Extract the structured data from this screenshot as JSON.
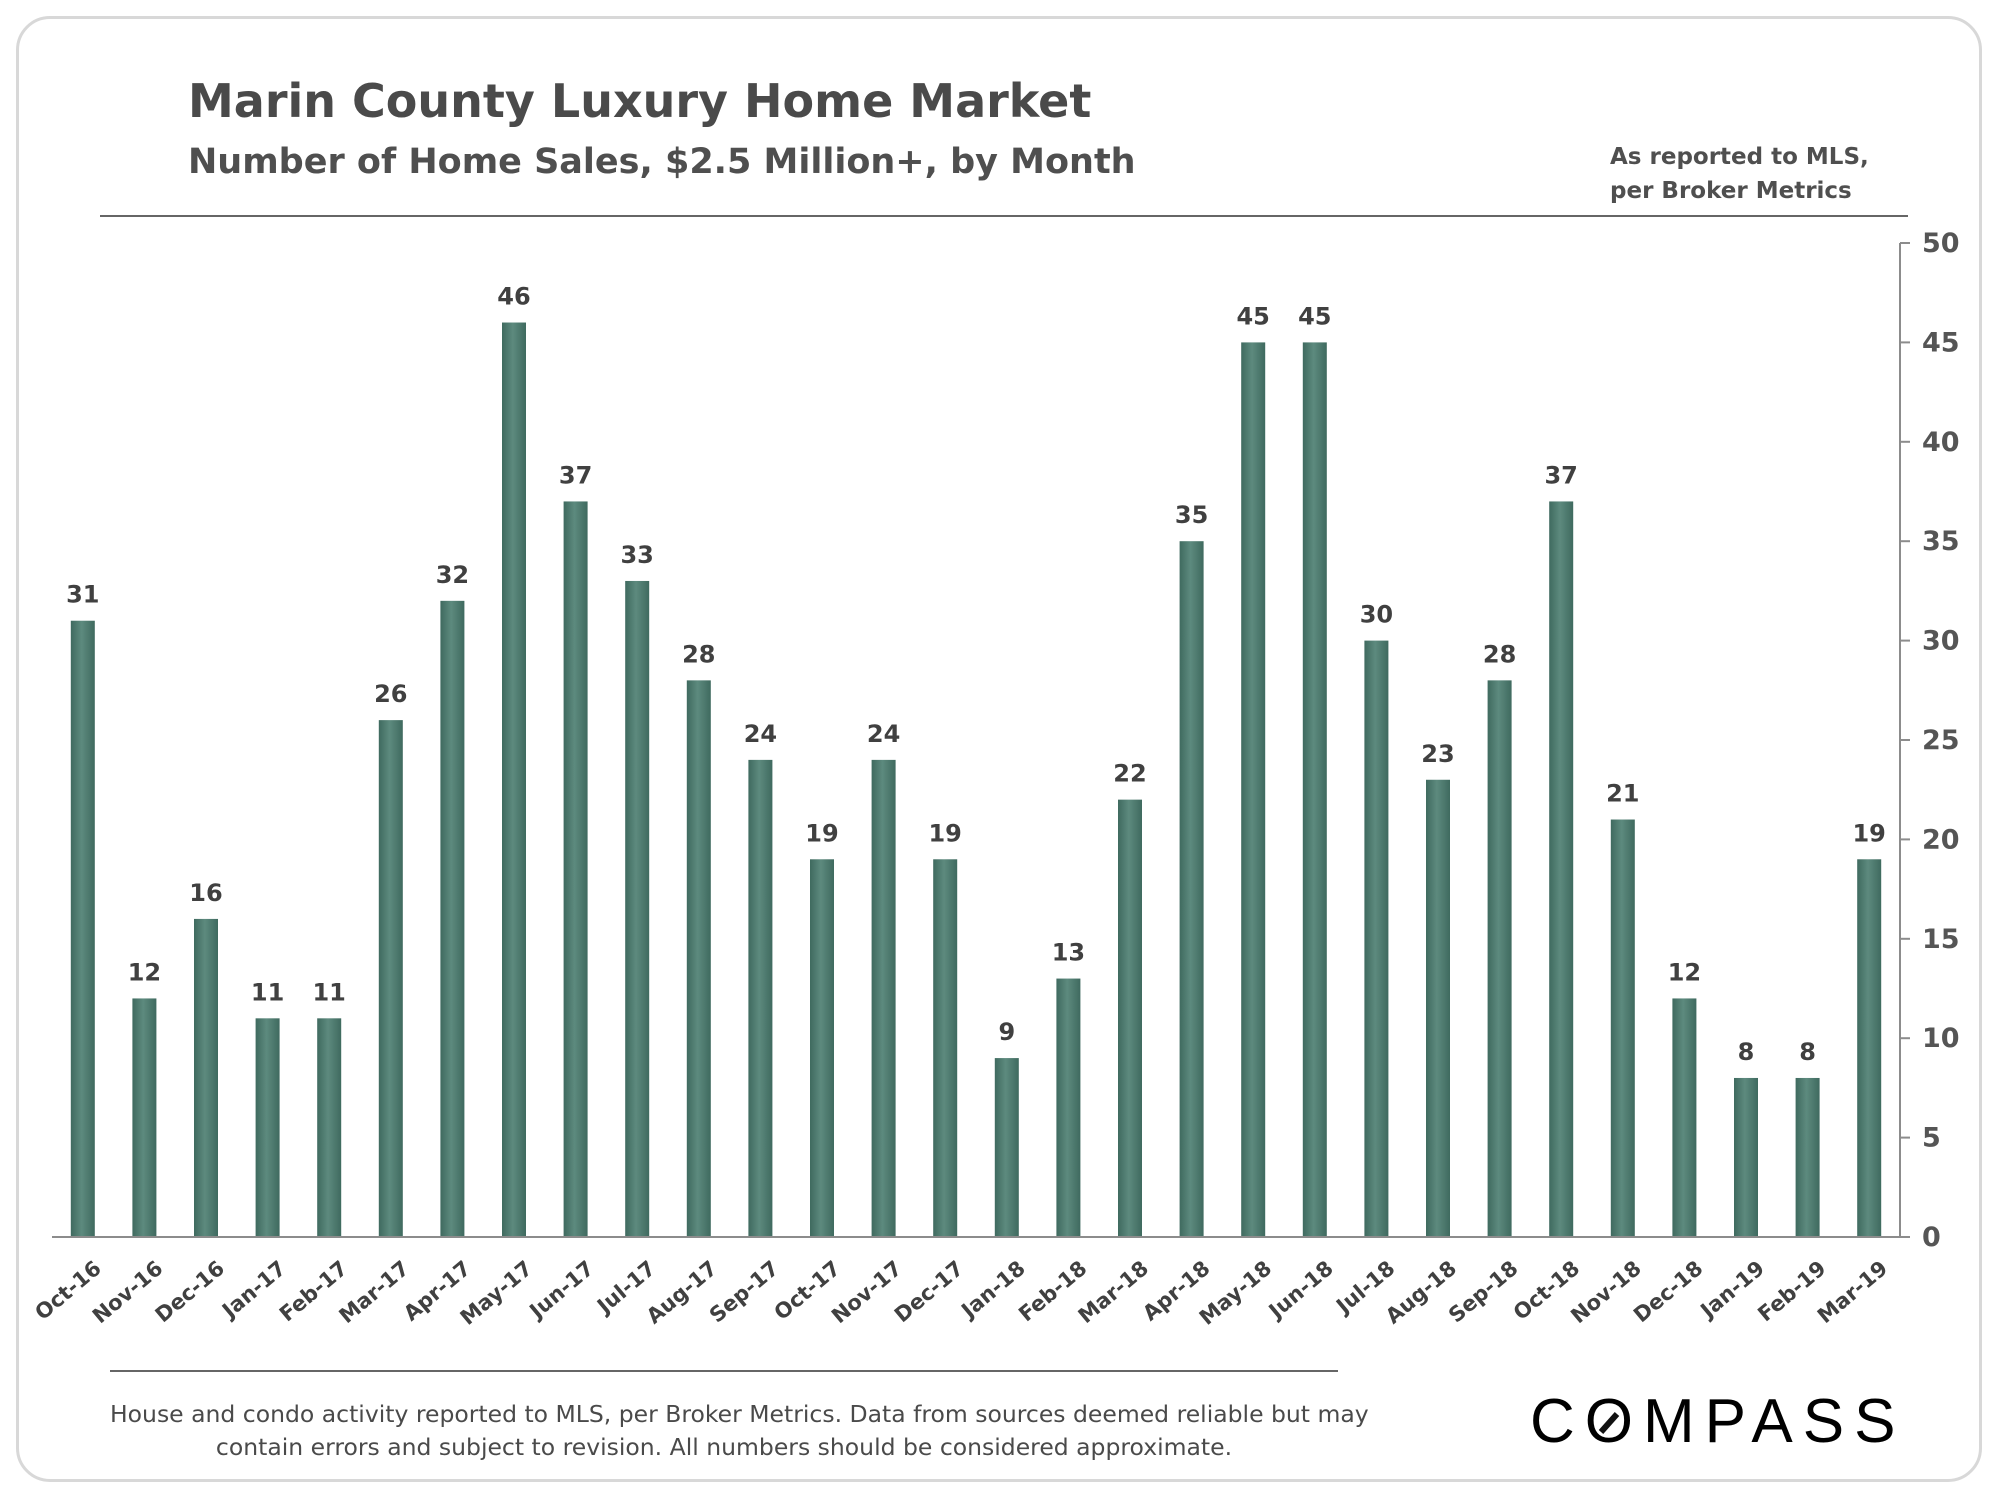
{
  "header": {
    "title": "Marin County Luxury Home Market",
    "subtitle": "Number of Home Sales, $2.5 Million+, by Month",
    "source_line1": "As reported to MLS,",
    "source_line2": "per Broker Metrics"
  },
  "footer": {
    "note_line1": "House and condo activity reported to MLS, per Broker Metrics. Data from sources deemed reliable but may",
    "note_line2": "contain errors and subject to revision. All numbers should be considered approximate.",
    "logo_text": "COMPASS"
  },
  "colors": {
    "bar": "#5d8a7e",
    "bar_dark": "#3f6a5f",
    "axis": "#8c8c8c",
    "text": "#404040"
  },
  "chart_data": {
    "type": "bar",
    "title": "Marin County Luxury Home Market",
    "subtitle": "Number of Home Sales, $2.5 Million+, by Month",
    "xlabel": "",
    "ylabel": "",
    "y_axis_side": "right",
    "ylim": [
      0,
      50
    ],
    "yticks": [
      0,
      5,
      10,
      15,
      20,
      25,
      30,
      35,
      40,
      45,
      50
    ],
    "grid": false,
    "categories": [
      "Oct-16",
      "Nov-16",
      "Dec-16",
      "Jan-17",
      "Feb-17",
      "Mar-17",
      "Apr-17",
      "May-17",
      "Jun-17",
      "Jul-17",
      "Aug-17",
      "Sep-17",
      "Oct-17",
      "Nov-17",
      "Dec-17",
      "Jan-18",
      "Feb-18",
      "Mar-18",
      "Apr-18",
      "May-18",
      "Jun-18",
      "Jul-18",
      "Aug-18",
      "Sep-18",
      "Oct-18",
      "Nov-18",
      "Dec-18",
      "Jan-19",
      "Feb-19",
      "Mar-19"
    ],
    "values": [
      31,
      12,
      16,
      11,
      11,
      26,
      32,
      46,
      37,
      33,
      28,
      24,
      19,
      24,
      19,
      9,
      13,
      22,
      35,
      45,
      45,
      30,
      23,
      28,
      37,
      21,
      12,
      8,
      8,
      19
    ]
  }
}
